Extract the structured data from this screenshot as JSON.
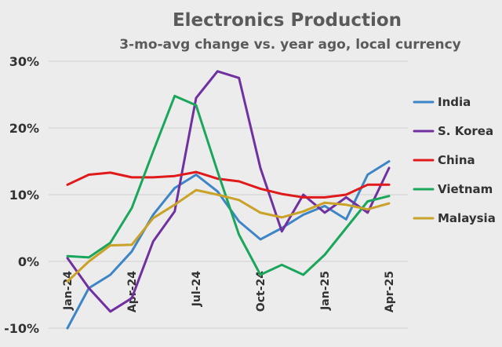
{
  "chart_data": {
    "type": "line",
    "title": "Electronics Production",
    "subtitle": "3-mo-avg change vs. year ago, local currency",
    "xlabel": "",
    "ylabel": "",
    "ylim": [
      -10,
      30
    ],
    "yticks": [
      -10,
      0,
      10,
      20,
      30
    ],
    "ytick_labels": [
      "-10%",
      "0%",
      "10%",
      "20%",
      "30%"
    ],
    "x": [
      "Jan-24",
      "Feb-24",
      "Mar-24",
      "Apr-24",
      "May-24",
      "Jun-24",
      "Jul-24",
      "Aug-24",
      "Sep-24",
      "Oct-24",
      "Nov-24",
      "Dec-24",
      "Jan-25",
      "Feb-25",
      "Mar-25",
      "Apr-25"
    ],
    "xtick_labels": [
      "Jan-24",
      "Apr-24",
      "Jul-24",
      "Oct-24",
      "Jan-25",
      "Apr-25"
    ],
    "xtick_positions": [
      0,
      3,
      6,
      9,
      12,
      15
    ],
    "grid": true,
    "legend_position": "right",
    "series": [
      {
        "name": "India",
        "color": "#3d85c6",
        "values": [
          -10,
          -4,
          -2,
          1.5,
          7,
          11,
          13,
          10.5,
          6,
          3.3,
          5,
          7,
          8.3,
          6.3,
          13,
          15
        ]
      },
      {
        "name": "S. Korea",
        "color": "#7030a0",
        "values": [
          0.5,
          -4,
          -7.5,
          -5.5,
          3,
          7.5,
          24.5,
          28.5,
          27.5,
          14,
          4.5,
          10,
          7.3,
          9.6,
          7.3,
          14
        ]
      },
      {
        "name": "China",
        "color": "#e0191b",
        "values": [
          11.5,
          13,
          13.3,
          12.6,
          12.6,
          12.8,
          13.4,
          12.4,
          12,
          10.9,
          10.1,
          9.6,
          9.6,
          10,
          11.5,
          11.5
        ]
      },
      {
        "name": "Vietnam",
        "color": "#1aa65b",
        "values": [
          0.8,
          0.6,
          2.8,
          8,
          16.5,
          24.8,
          23.4,
          13.5,
          4,
          -2,
          -0.5,
          -2,
          1,
          5,
          9,
          9.8
        ]
      },
      {
        "name": "Malaysia",
        "color": "#c9a227",
        "values": [
          -3,
          0,
          2.4,
          2.5,
          6.5,
          8.5,
          10.7,
          10,
          9.2,
          7.3,
          6.6,
          7.5,
          8.8,
          8.5,
          7.8,
          8.7
        ]
      }
    ]
  }
}
